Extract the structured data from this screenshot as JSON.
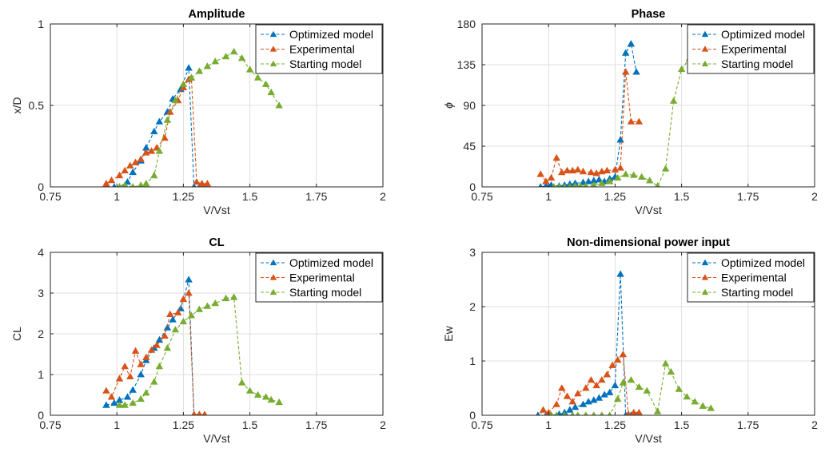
{
  "figure": {
    "background": "#ffffff"
  },
  "legend_entries": [
    "Optimized model",
    "Experimental",
    "Starting model"
  ],
  "colors": {
    "optimized": "#0072BD",
    "experimental": "#D95319",
    "starting": "#77AC30",
    "grid": "#dfdfdf",
    "axis": "#262626"
  },
  "chart_data": [
    {
      "type": "line",
      "title": "Amplitude",
      "xlabel": "V/Vst",
      "ylabel": "x/D",
      "xlim": [
        0.75,
        2
      ],
      "ylim": [
        0,
        1
      ],
      "xticks": [
        "0.75",
        "1",
        "1.25",
        "1.5",
        "1.75",
        "2"
      ],
      "yticks": [
        "0",
        "0.5",
        "1"
      ],
      "grid": true,
      "legend_position": "top-right",
      "series": [
        {
          "name": "Optimized model",
          "color": "#0072BD",
          "x": [
            0.96,
            0.99,
            1.01,
            1.04,
            1.06,
            1.09,
            1.11,
            1.14,
            1.16,
            1.19,
            1.21,
            1.24,
            1.27,
            1.29,
            1.31,
            1.33
          ],
          "y": [
            0.0,
            0.0,
            0.0,
            0.03,
            0.09,
            0.16,
            0.24,
            0.34,
            0.4,
            0.46,
            0.54,
            0.6,
            0.73,
            0.0,
            0.0,
            0.0
          ]
        },
        {
          "name": "Experimental",
          "color": "#D95319",
          "x": [
            0.96,
            0.98,
            1.01,
            1.03,
            1.05,
            1.07,
            1.09,
            1.11,
            1.13,
            1.15,
            1.18,
            1.2,
            1.23,
            1.25,
            1.27,
            1.28,
            1.3,
            1.32,
            1.34
          ],
          "y": [
            0.02,
            0.04,
            0.07,
            0.1,
            0.13,
            0.15,
            0.17,
            0.21,
            0.22,
            0.24,
            0.3,
            0.46,
            0.53,
            0.61,
            0.66,
            0.67,
            0.03,
            0.02,
            0.02
          ]
        },
        {
          "name": "Starting model",
          "color": "#77AC30",
          "x": [
            1.01,
            1.03,
            1.06,
            1.09,
            1.11,
            1.14,
            1.16,
            1.19,
            1.22,
            1.25,
            1.28,
            1.31,
            1.34,
            1.37,
            1.41,
            1.44,
            1.47,
            1.5,
            1.53,
            1.56,
            1.58,
            1.61
          ],
          "y": [
            0.0,
            0.01,
            0.0,
            0.01,
            0.02,
            0.07,
            0.22,
            0.41,
            0.53,
            0.63,
            0.67,
            0.71,
            0.74,
            0.77,
            0.8,
            0.83,
            0.79,
            0.72,
            0.67,
            0.63,
            0.58,
            0.5
          ]
        }
      ]
    },
    {
      "type": "line",
      "title": "Phase",
      "xlabel": "V/Vst",
      "ylabel": "ϕ",
      "xlim": [
        0.75,
        2
      ],
      "ylim": [
        0,
        180
      ],
      "xticks": [
        "0.75",
        "1",
        "1.25",
        "1.5",
        "1.75",
        "2"
      ],
      "yticks": [
        "0",
        "45",
        "90",
        "135",
        "180"
      ],
      "grid": true,
      "legend_position": "top-right",
      "series": [
        {
          "name": "Optimized model",
          "color": "#0072BD",
          "x": [
            0.97,
            0.99,
            1.01,
            1.04,
            1.06,
            1.08,
            1.1,
            1.13,
            1.15,
            1.17,
            1.19,
            1.21,
            1.23,
            1.25,
            1.27,
            1.29,
            1.31,
            1.33
          ],
          "y": [
            0,
            1,
            2,
            1,
            2,
            3,
            4,
            5,
            6,
            7,
            8,
            6,
            9,
            11,
            52,
            148,
            158,
            127
          ]
        },
        {
          "name": "Experimental",
          "color": "#D95319",
          "x": [
            0.97,
            0.99,
            1.01,
            1.03,
            1.05,
            1.07,
            1.09,
            1.11,
            1.13,
            1.16,
            1.18,
            1.2,
            1.22,
            1.25,
            1.27,
            1.29,
            1.31,
            1.34
          ],
          "y": [
            14,
            6,
            10,
            32,
            16,
            18,
            18,
            19,
            17,
            16,
            15,
            17,
            18,
            19,
            21,
            127,
            72,
            72
          ]
        },
        {
          "name": "Starting model",
          "color": "#77AC30",
          "x": [
            1.02,
            1.04,
            1.06,
            1.08,
            1.1,
            1.12,
            1.14,
            1.17,
            1.2,
            1.23,
            1.26,
            1.29,
            1.32,
            1.35,
            1.38,
            1.41,
            1.44,
            1.47,
            1.5,
            1.53
          ],
          "y": [
            0,
            0,
            0,
            0,
            1,
            1,
            1,
            2,
            4,
            6,
            10,
            14,
            13,
            11,
            7,
            1,
            20,
            95,
            130,
            142
          ]
        }
      ]
    },
    {
      "type": "line",
      "title": "CL",
      "xlabel": "V/Vst",
      "ylabel": "CL",
      "xlim": [
        0.75,
        2
      ],
      "ylim": [
        0,
        4
      ],
      "xticks": [
        "0.75",
        "1",
        "1.25",
        "1.5",
        "1.75",
        "2"
      ],
      "yticks": [
        "0",
        "1",
        "2",
        "3",
        "4"
      ],
      "grid": true,
      "legend_position": "top-right",
      "series": [
        {
          "name": "Optimized model",
          "color": "#0072BD",
          "x": [
            0.96,
            0.99,
            1.01,
            1.04,
            1.06,
            1.09,
            1.11,
            1.14,
            1.16,
            1.19,
            1.21,
            1.24,
            1.27,
            1.29,
            1.31,
            1.33
          ],
          "y": [
            0.25,
            0.3,
            0.37,
            0.45,
            0.62,
            1.0,
            1.35,
            1.65,
            1.85,
            2.15,
            2.35,
            2.62,
            3.33,
            0.0,
            0.0,
            0.0
          ]
        },
        {
          "name": "Experimental",
          "color": "#D95319",
          "x": [
            0.96,
            0.98,
            1.01,
            1.03,
            1.05,
            1.07,
            1.09,
            1.11,
            1.13,
            1.15,
            1.18,
            1.2,
            1.23,
            1.25,
            1.27,
            1.29,
            1.31,
            1.33
          ],
          "y": [
            0.6,
            0.45,
            0.9,
            1.2,
            0.95,
            1.58,
            1.25,
            1.42,
            1.6,
            1.72,
            1.95,
            2.48,
            2.52,
            2.85,
            3.0,
            0.02,
            0.02,
            0.02
          ]
        },
        {
          "name": "Starting model",
          "color": "#77AC30",
          "x": [
            1.01,
            1.03,
            1.06,
            1.09,
            1.11,
            1.14,
            1.16,
            1.19,
            1.22,
            1.25,
            1.28,
            1.31,
            1.34,
            1.37,
            1.41,
            1.44,
            1.47,
            1.5,
            1.53,
            1.56,
            1.58,
            1.61
          ],
          "y": [
            0.25,
            0.25,
            0.3,
            0.4,
            0.55,
            0.82,
            1.2,
            1.65,
            2.1,
            2.3,
            2.45,
            2.6,
            2.68,
            2.75,
            2.87,
            2.9,
            0.8,
            0.6,
            0.5,
            0.45,
            0.38,
            0.32
          ]
        }
      ]
    },
    {
      "type": "line",
      "title": "Non-dimensional power input",
      "xlabel": "V/Vst",
      "ylabel": "Ew",
      "xlim": [
        0.75,
        2
      ],
      "ylim": [
        0,
        3
      ],
      "xticks": [
        "0.75",
        "1",
        "1.25",
        "1.5",
        "1.75",
        "2"
      ],
      "yticks": [
        "0",
        "1",
        "2",
        "3"
      ],
      "grid": true,
      "legend_position": "top-right",
      "series": [
        {
          "name": "Optimized model",
          "color": "#0072BD",
          "x": [
            0.96,
            0.99,
            1.01,
            1.04,
            1.06,
            1.08,
            1.1,
            1.13,
            1.15,
            1.17,
            1.19,
            1.21,
            1.23,
            1.25,
            1.27,
            1.29,
            1.31,
            1.33
          ],
          "y": [
            0.0,
            0.0,
            0.0,
            0.02,
            0.05,
            0.1,
            0.15,
            0.2,
            0.25,
            0.28,
            0.32,
            0.38,
            0.42,
            0.55,
            2.6,
            0.0,
            0.0,
            0.0
          ]
        },
        {
          "name": "Experimental",
          "color": "#D95319",
          "x": [
            0.96,
            0.98,
            1.0,
            1.03,
            1.05,
            1.07,
            1.09,
            1.11,
            1.14,
            1.16,
            1.18,
            1.2,
            1.22,
            1.24,
            1.26,
            1.28,
            1.3,
            1.32,
            1.34
          ],
          "y": [
            -0.05,
            0.1,
            0.05,
            0.2,
            0.5,
            0.35,
            0.25,
            0.4,
            0.5,
            0.65,
            0.55,
            0.65,
            0.75,
            0.92,
            1.02,
            1.12,
            0.02,
            0.05,
            0.05
          ]
        },
        {
          "name": "Starting model",
          "color": "#77AC30",
          "x": [
            1.01,
            1.03,
            1.06,
            1.09,
            1.11,
            1.14,
            1.17,
            1.2,
            1.23,
            1.26,
            1.28,
            1.31,
            1.34,
            1.37,
            1.41,
            1.44,
            1.46,
            1.49,
            1.52,
            1.55,
            1.58,
            1.61
          ],
          "y": [
            0.0,
            0.0,
            0.0,
            0.0,
            0.0,
            0.0,
            0.0,
            0.0,
            0.0,
            0.3,
            0.6,
            0.65,
            0.52,
            0.45,
            0.07,
            0.95,
            0.8,
            0.48,
            0.34,
            0.25,
            0.17,
            0.13
          ]
        }
      ]
    }
  ]
}
